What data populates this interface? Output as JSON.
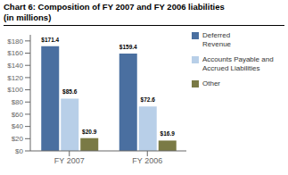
{
  "chart_data": {
    "type": "bar",
    "title": "Chart 6: Composition of FY 2007 and FY 2006 liabilities",
    "subtitle": "(in millions)",
    "categories": [
      "FY 2007",
      "FY 2006"
    ],
    "series": [
      {
        "name": "Deferred\nRevenue",
        "color": "#4a6fa0",
        "values": [
          171.4,
          159.4
        ],
        "value_labels": [
          "$171.4",
          "$159.4"
        ]
      },
      {
        "name": "Accounts Payable and\nAccrued Liabilities",
        "color": "#b8cfe8",
        "values": [
          85.6,
          72.6
        ],
        "value_labels": [
          "$85.6",
          "$72.6"
        ]
      },
      {
        "name": "Other",
        "color": "#7a7a45",
        "values": [
          20.9,
          16.9
        ],
        "value_labels": [
          "$20.9",
          "$16.9"
        ]
      }
    ],
    "ylim": [
      0,
      190
    ],
    "yticks": [
      {
        "value": 0,
        "label": "$0"
      },
      {
        "value": 20,
        "label": "$20"
      },
      {
        "value": 40,
        "label": "$40"
      },
      {
        "value": 60,
        "label": "$60"
      },
      {
        "value": 80,
        "label": "$80"
      },
      {
        "value": 100,
        "label": "$100"
      },
      {
        "value": 120,
        "label": "$120"
      },
      {
        "value": 140,
        "label": "$140"
      },
      {
        "value": 160,
        "label": "$160"
      },
      {
        "value": 180,
        "label": "$180"
      }
    ],
    "data_labels": true,
    "legend": "right",
    "grid": false
  }
}
